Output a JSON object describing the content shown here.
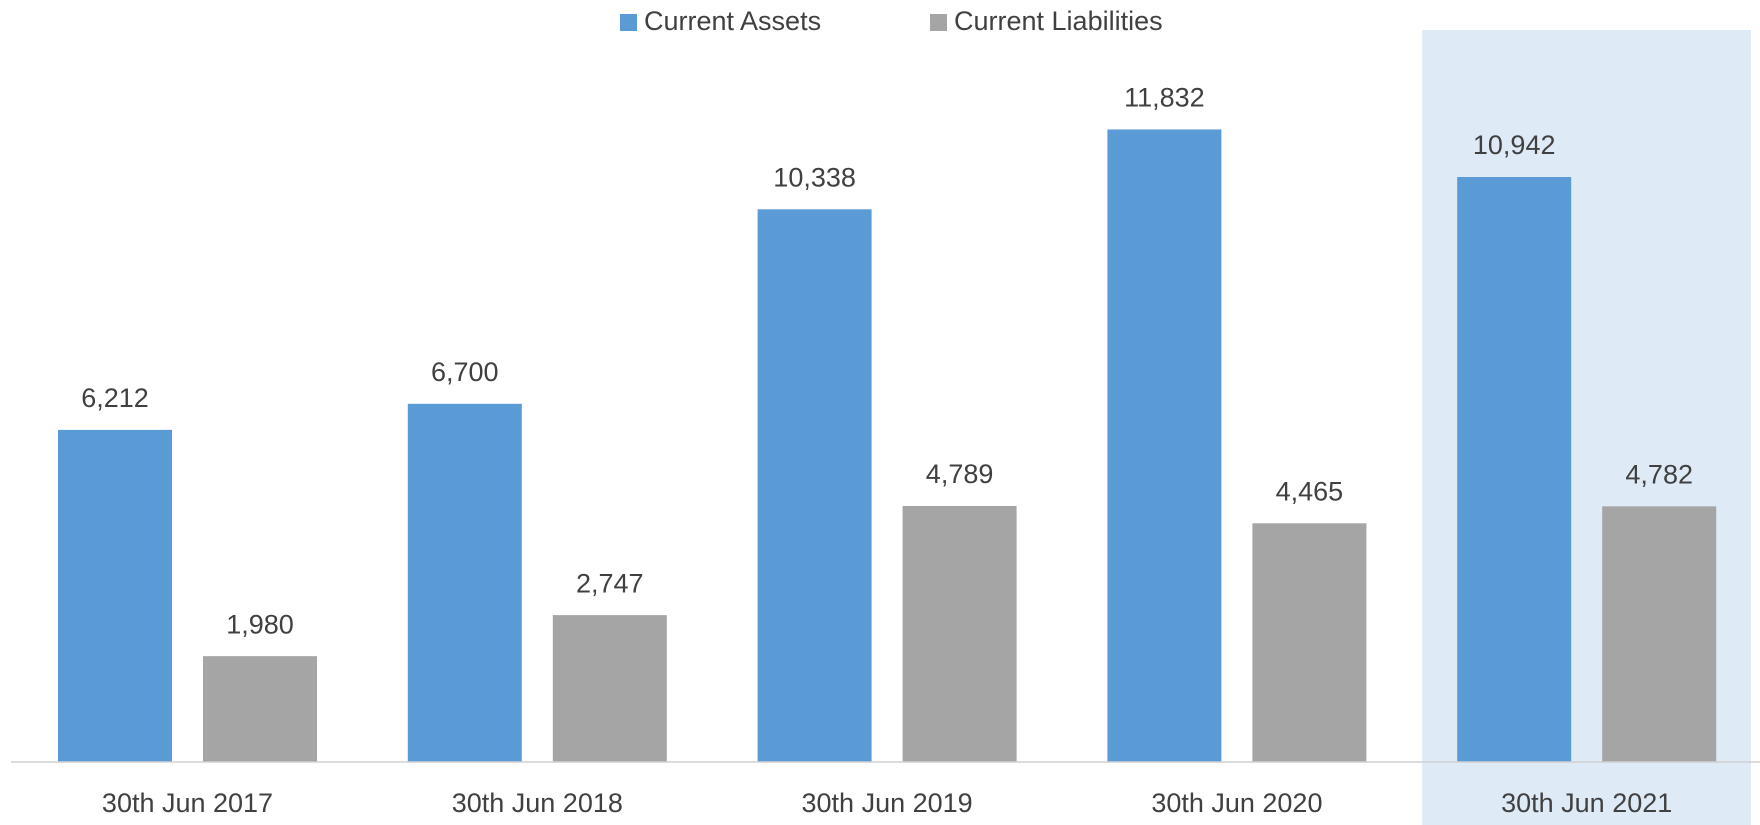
{
  "chart_data": {
    "type": "bar",
    "categories": [
      "30th Jun 2017",
      "30th Jun 2018",
      "30th Jun 2019",
      "30th Jun 2020",
      "30th Jun 2021"
    ],
    "series": [
      {
        "name": "Current Assets",
        "color": "#5b9bd5",
        "values": [
          6212,
          6700,
          10338,
          11832,
          10942
        ],
        "value_labels": [
          "6,212",
          "6,700",
          "10,338",
          "11,832",
          "10,942"
        ]
      },
      {
        "name": "Current Liabilities",
        "color": "#a5a5a5",
        "values": [
          1980,
          2747,
          4789,
          4465,
          4782
        ],
        "value_labels": [
          "1,980",
          "2,747",
          "4,789",
          "4,465",
          "4,782"
        ]
      }
    ],
    "ylim": [
      0,
      13000
    ],
    "legend": "top",
    "highlight": {
      "index": 4,
      "color": "#deeaf6"
    }
  }
}
